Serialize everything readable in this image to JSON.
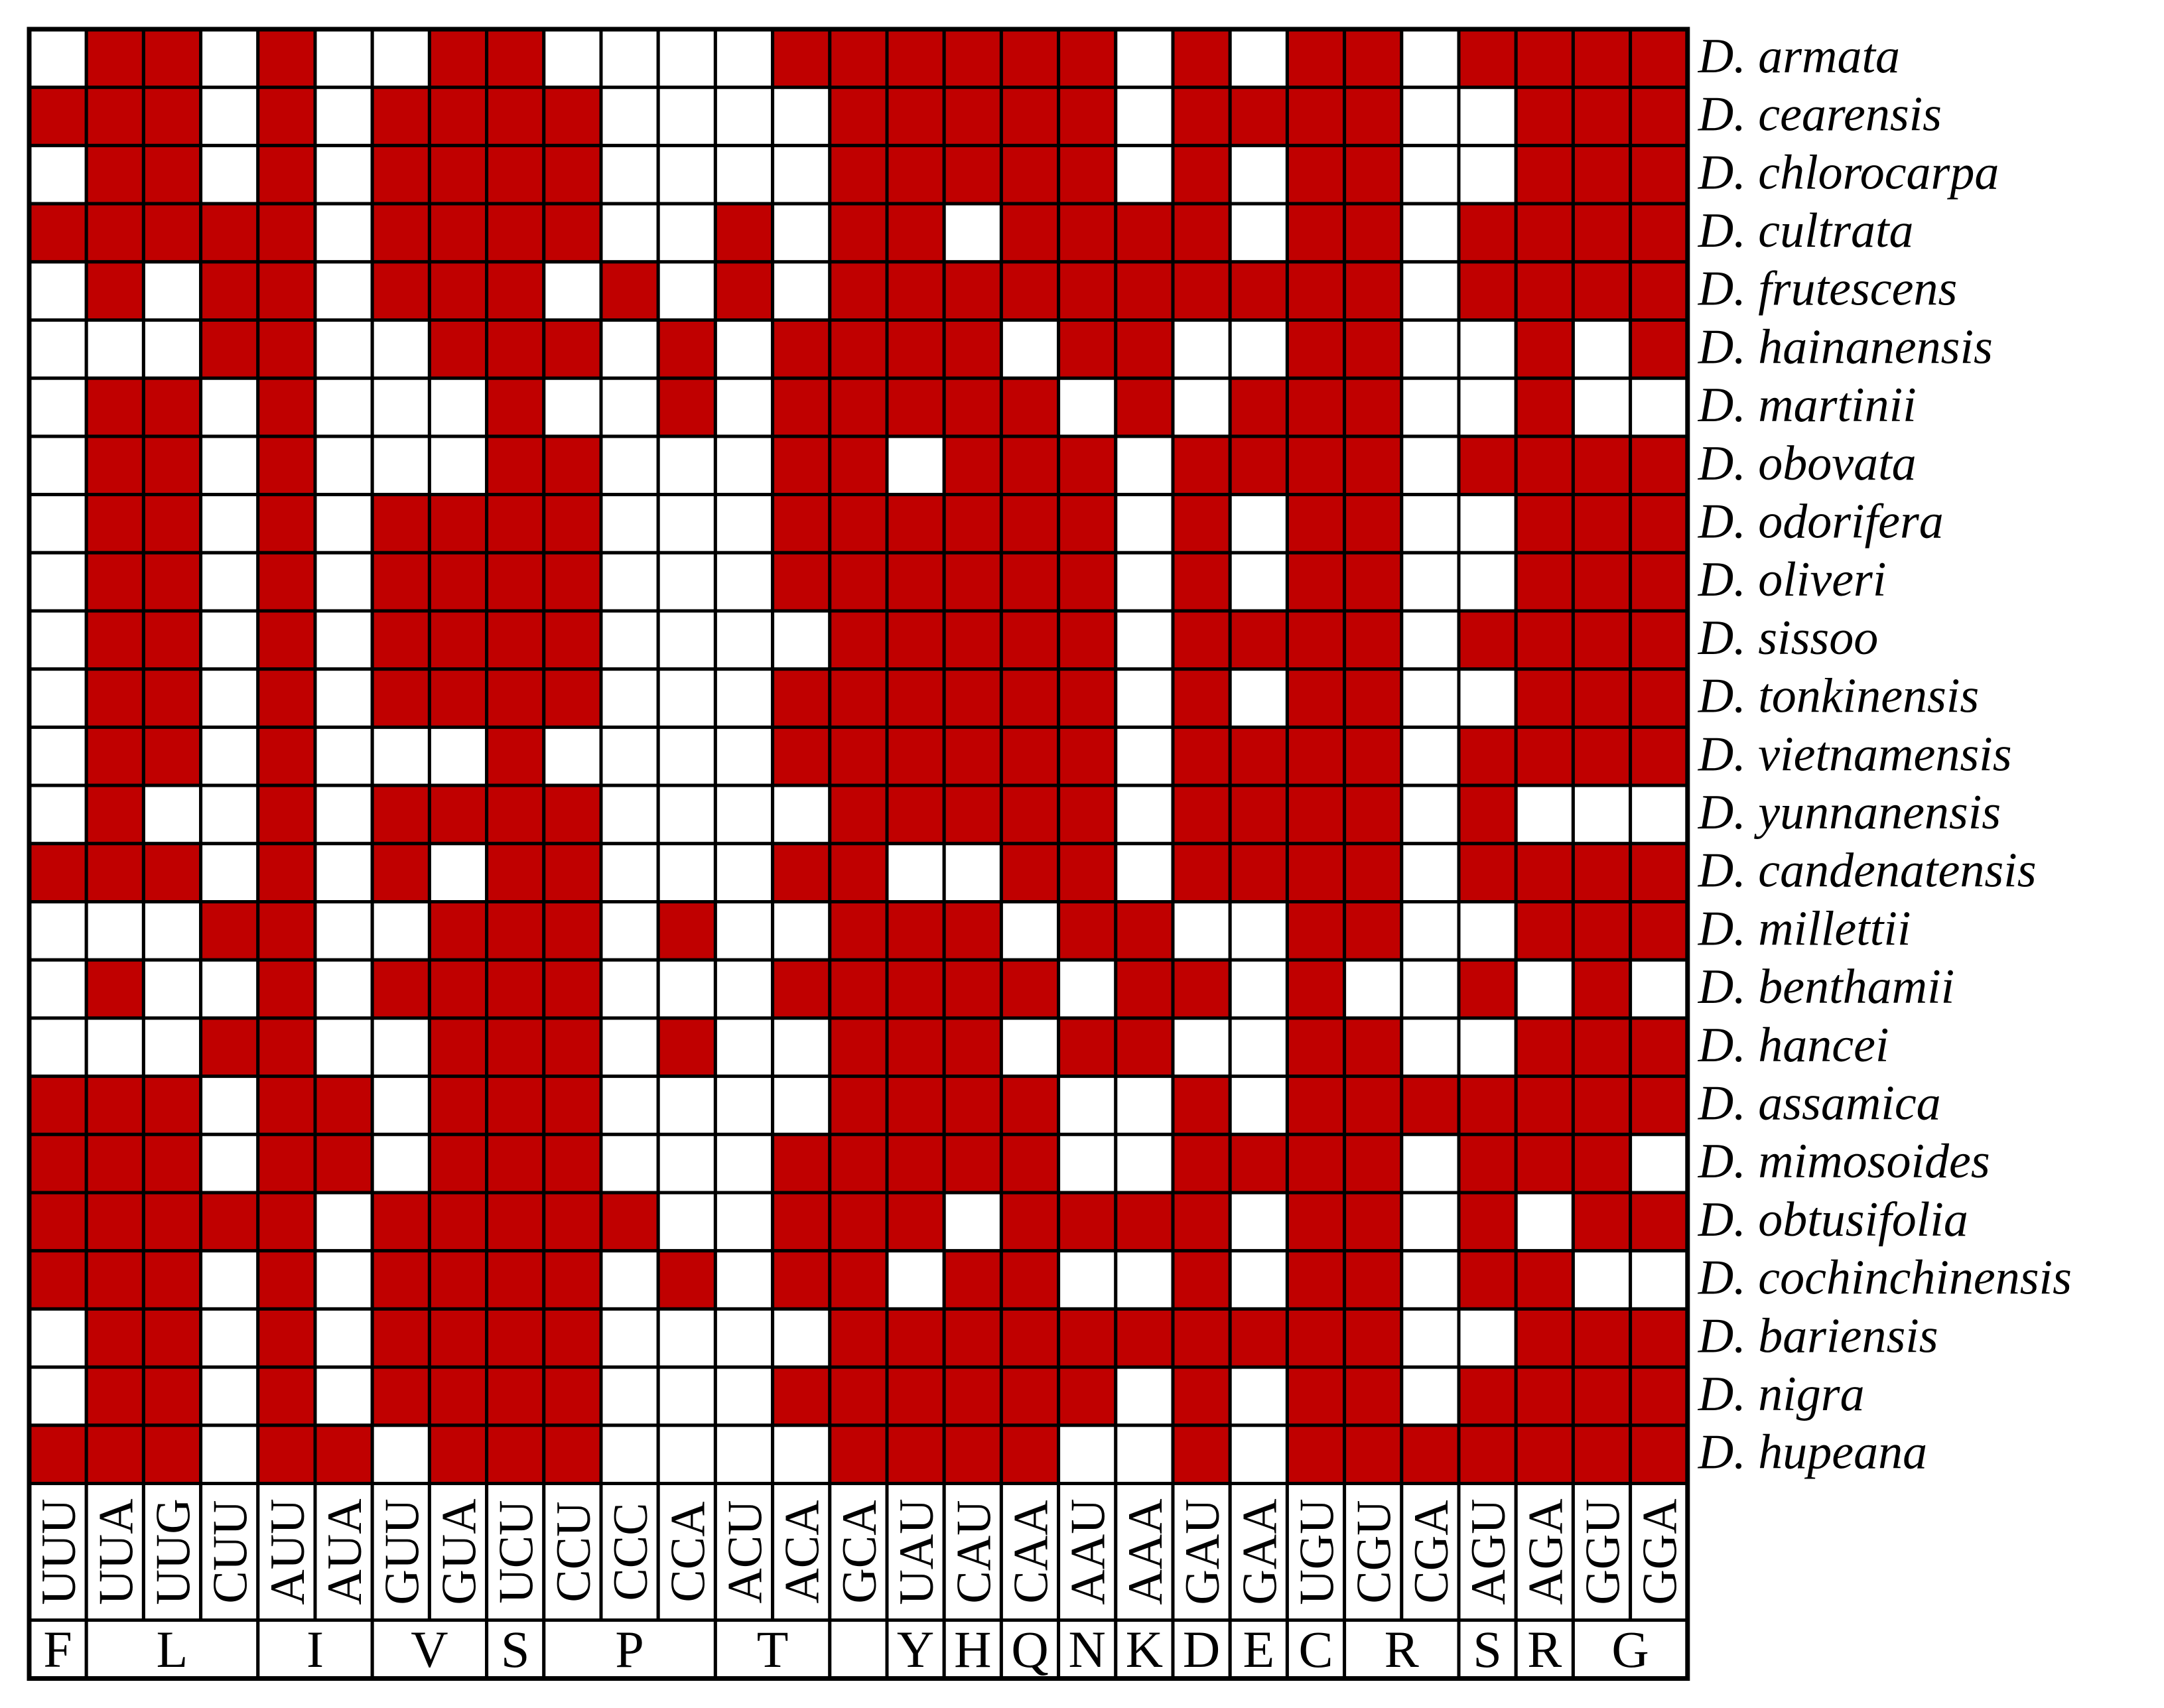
{
  "chart_data": {
    "type": "heatmap",
    "colors": {
      "present": "#c00000",
      "absent": "#ffffff",
      "grid": "#000000"
    },
    "codons": [
      "UUU",
      "UUA",
      "UUG",
      "CUU",
      "AUU",
      "AUA",
      "GUU",
      "GUA",
      "UCU",
      "CCU",
      "CCC",
      "CCA",
      "ACU",
      "ACA",
      "GCA",
      "UAU",
      "CAU",
      "CAA",
      "AAU",
      "AAA",
      "GAU",
      "GAA",
      "UGU",
      "CGU",
      "CGA",
      "AGU",
      "AGA",
      "GGU",
      "GGA"
    ],
    "amino_acids": [
      {
        "label": "F",
        "span": 1
      },
      {
        "label": "L",
        "span": 3
      },
      {
        "label": "I",
        "span": 2
      },
      {
        "label": "V",
        "span": 2
      },
      {
        "label": "S",
        "span": 1
      },
      {
        "label": "P",
        "span": 3
      },
      {
        "label": "T",
        "span": 2
      },
      {
        "label": "",
        "span": 1
      },
      {
        "label": "Y",
        "span": 1
      },
      {
        "label": "H",
        "span": 1
      },
      {
        "label": "Q",
        "span": 1
      },
      {
        "label": "N",
        "span": 1
      },
      {
        "label": "K",
        "span": 1
      },
      {
        "label": "D",
        "span": 1
      },
      {
        "label": "E",
        "span": 1
      },
      {
        "label": "C",
        "span": 1
      },
      {
        "label": "R",
        "span": 2
      },
      {
        "label": "S",
        "span": 1
      },
      {
        "label": "R",
        "span": 1
      },
      {
        "label": "G",
        "span": 2
      }
    ],
    "species": [
      "D. armata",
      "D. cearensis",
      "D. chlorocarpa",
      "D. cultrata",
      "D. frutescens",
      "D. hainanensis",
      "D. martinii",
      "D. obovata",
      "D. odorifera",
      "D. oliveri",
      "D. sissoo",
      "D. tonkinensis",
      "D. vietnamensis",
      "D. yunnanensis",
      "D. candenatensis",
      "D. millettii",
      "D. benthamii",
      "D. hancei",
      "D. assamica",
      "D. mimosoides",
      "D. obtusifolia",
      "D. cochinchinensis",
      "D. bariensis",
      "D. nigra",
      "D. hupeana"
    ],
    "matrix": [
      [
        0,
        1,
        1,
        0,
        1,
        0,
        0,
        1,
        1,
        0,
        0,
        0,
        0,
        1,
        1,
        1,
        1,
        1,
        1,
        0,
        1,
        0,
        1,
        1,
        0,
        1,
        1,
        1,
        1
      ],
      [
        1,
        1,
        1,
        0,
        1,
        0,
        1,
        1,
        1,
        1,
        0,
        0,
        0,
        0,
        1,
        1,
        1,
        1,
        1,
        0,
        1,
        1,
        1,
        1,
        0,
        0,
        1,
        1,
        1
      ],
      [
        0,
        1,
        1,
        0,
        1,
        0,
        1,
        1,
        1,
        1,
        0,
        0,
        0,
        0,
        1,
        1,
        1,
        1,
        1,
        0,
        1,
        0,
        1,
        1,
        0,
        0,
        1,
        1,
        1
      ],
      [
        1,
        1,
        1,
        1,
        1,
        0,
        1,
        1,
        1,
        1,
        0,
        0,
        1,
        0,
        1,
        1,
        0,
        1,
        1,
        1,
        1,
        0,
        1,
        1,
        0,
        1,
        1,
        1,
        1
      ],
      [
        0,
        1,
        0,
        1,
        1,
        0,
        1,
        1,
        1,
        0,
        1,
        0,
        1,
        0,
        1,
        1,
        1,
        1,
        1,
        1,
        1,
        1,
        1,
        1,
        0,
        1,
        1,
        1,
        1
      ],
      [
        0,
        0,
        0,
        1,
        1,
        0,
        0,
        1,
        1,
        1,
        0,
        1,
        0,
        1,
        1,
        1,
        1,
        0,
        1,
        1,
        0,
        0,
        1,
        1,
        0,
        0,
        1,
        0,
        1
      ],
      [
        0,
        1,
        1,
        0,
        1,
        0,
        0,
        0,
        1,
        0,
        0,
        1,
        0,
        1,
        1,
        1,
        1,
        1,
        0,
        1,
        0,
        1,
        1,
        1,
        0,
        0,
        1,
        0,
        0
      ],
      [
        0,
        1,
        1,
        0,
        1,
        0,
        0,
        0,
        1,
        1,
        0,
        0,
        0,
        1,
        1,
        0,
        1,
        1,
        1,
        0,
        1,
        1,
        1,
        1,
        0,
        1,
        1,
        1,
        1
      ],
      [
        0,
        1,
        1,
        0,
        1,
        0,
        1,
        1,
        1,
        1,
        0,
        0,
        0,
        1,
        1,
        1,
        1,
        1,
        1,
        0,
        1,
        0,
        1,
        1,
        0,
        0,
        1,
        1,
        1
      ],
      [
        0,
        1,
        1,
        0,
        1,
        0,
        1,
        1,
        1,
        1,
        0,
        0,
        0,
        1,
        1,
        1,
        1,
        1,
        1,
        0,
        1,
        0,
        1,
        1,
        0,
        0,
        1,
        1,
        1
      ],
      [
        0,
        1,
        1,
        0,
        1,
        0,
        1,
        1,
        1,
        1,
        0,
        0,
        0,
        0,
        1,
        1,
        1,
        1,
        1,
        0,
        1,
        1,
        1,
        1,
        0,
        1,
        1,
        1,
        1
      ],
      [
        0,
        1,
        1,
        0,
        1,
        0,
        1,
        1,
        1,
        1,
        0,
        0,
        0,
        1,
        1,
        1,
        1,
        1,
        1,
        0,
        1,
        0,
        1,
        1,
        0,
        0,
        1,
        1,
        1
      ],
      [
        0,
        1,
        1,
        0,
        1,
        0,
        0,
        0,
        1,
        0,
        0,
        0,
        0,
        1,
        1,
        1,
        1,
        1,
        1,
        0,
        1,
        1,
        1,
        1,
        0,
        1,
        1,
        1,
        1
      ],
      [
        0,
        1,
        0,
        0,
        1,
        0,
        1,
        1,
        1,
        1,
        0,
        0,
        0,
        0,
        1,
        1,
        1,
        1,
        1,
        0,
        1,
        1,
        1,
        1,
        0,
        1,
        0,
        0,
        0
      ],
      [
        1,
        1,
        1,
        0,
        1,
        0,
        1,
        0,
        1,
        1,
        0,
        0,
        0,
        1,
        1,
        0,
        0,
        1,
        1,
        0,
        1,
        1,
        1,
        1,
        0,
        1,
        1,
        1,
        1
      ],
      [
        0,
        0,
        0,
        1,
        1,
        0,
        0,
        1,
        1,
        1,
        0,
        1,
        0,
        0,
        1,
        1,
        1,
        0,
        1,
        1,
        0,
        0,
        1,
        1,
        0,
        0,
        1,
        1,
        1
      ],
      [
        0,
        1,
        0,
        0,
        1,
        0,
        1,
        1,
        1,
        1,
        0,
        0,
        0,
        1,
        1,
        1,
        1,
        1,
        0,
        1,
        1,
        0,
        1,
        0,
        0,
        1,
        0,
        1,
        0
      ],
      [
        0,
        0,
        0,
        1,
        1,
        0,
        0,
        1,
        1,
        1,
        0,
        1,
        0,
        0,
        1,
        1,
        1,
        0,
        1,
        1,
        0,
        0,
        1,
        1,
        0,
        0,
        1,
        1,
        1
      ],
      [
        1,
        1,
        1,
        0,
        1,
        1,
        0,
        1,
        1,
        1,
        0,
        0,
        0,
        0,
        1,
        1,
        1,
        1,
        0,
        0,
        1,
        0,
        1,
        1,
        1,
        1,
        1,
        1,
        1
      ],
      [
        1,
        1,
        1,
        0,
        1,
        1,
        0,
        1,
        1,
        1,
        0,
        0,
        0,
        1,
        1,
        1,
        1,
        1,
        0,
        0,
        1,
        1,
        1,
        1,
        0,
        1,
        1,
        1,
        0
      ],
      [
        1,
        1,
        1,
        1,
        1,
        0,
        1,
        1,
        1,
        1,
        1,
        0,
        0,
        1,
        1,
        1,
        0,
        1,
        1,
        1,
        1,
        0,
        1,
        1,
        0,
        1,
        0,
        1,
        1
      ],
      [
        1,
        1,
        1,
        0,
        1,
        0,
        1,
        1,
        1,
        1,
        0,
        1,
        0,
        1,
        1,
        0,
        1,
        1,
        0,
        0,
        1,
        0,
        1,
        1,
        0,
        1,
        1,
        0,
        0
      ],
      [
        0,
        1,
        1,
        0,
        1,
        0,
        1,
        1,
        1,
        1,
        0,
        0,
        0,
        0,
        1,
        1,
        1,
        1,
        1,
        1,
        1,
        1,
        1,
        1,
        0,
        0,
        1,
        1,
        1
      ],
      [
        0,
        1,
        1,
        0,
        1,
        0,
        1,
        1,
        1,
        1,
        0,
        0,
        0,
        1,
        1,
        1,
        1,
        1,
        1,
        0,
        1,
        0,
        1,
        1,
        0,
        1,
        1,
        1,
        1
      ],
      [
        1,
        1,
        1,
        0,
        1,
        1,
        0,
        1,
        1,
        1,
        0,
        0,
        0,
        0,
        1,
        1,
        1,
        1,
        0,
        0,
        1,
        0,
        1,
        1,
        1,
        1,
        1,
        1,
        1
      ]
    ]
  }
}
